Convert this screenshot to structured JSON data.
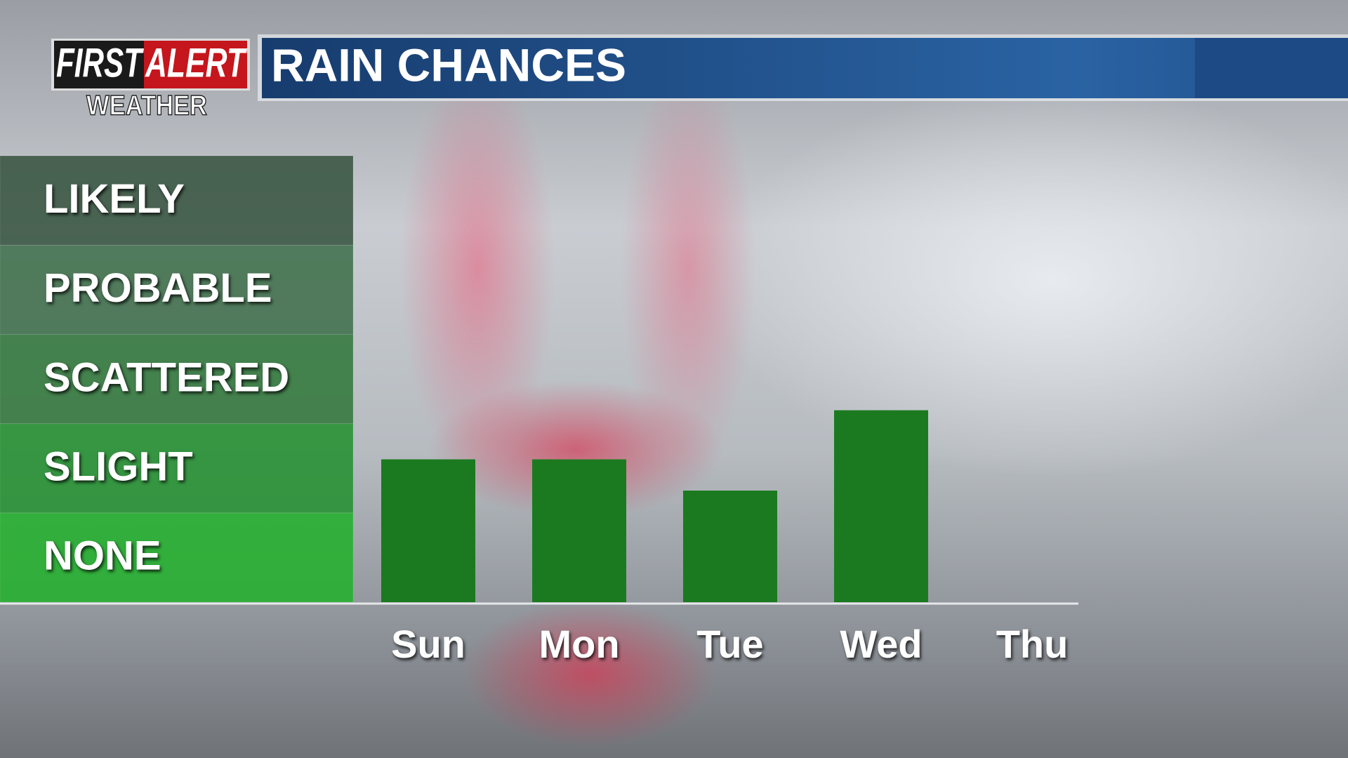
{
  "brand": {
    "first": "FIRST",
    "alert": "ALERT",
    "sub": "WEATHER"
  },
  "chart_data": {
    "type": "bar",
    "title": "RAIN CHANCES",
    "categories": [
      "Sun",
      "Mon",
      "Tue",
      "Wed",
      "Thu"
    ],
    "values": [
      1.6,
      1.6,
      1.25,
      2.15,
      0
    ],
    "color": "#1b7a20",
    "ylim": [
      0,
      5
    ],
    "yticks": [
      {
        "value": 0.5,
        "label": "NONE"
      },
      {
        "value": 1.5,
        "label": "SLIGHT"
      },
      {
        "value": 2.5,
        "label": "SCATTERED"
      },
      {
        "value": 3.5,
        "label": "PROBABLE"
      },
      {
        "value": 4.5,
        "label": "LIKELY"
      }
    ]
  }
}
